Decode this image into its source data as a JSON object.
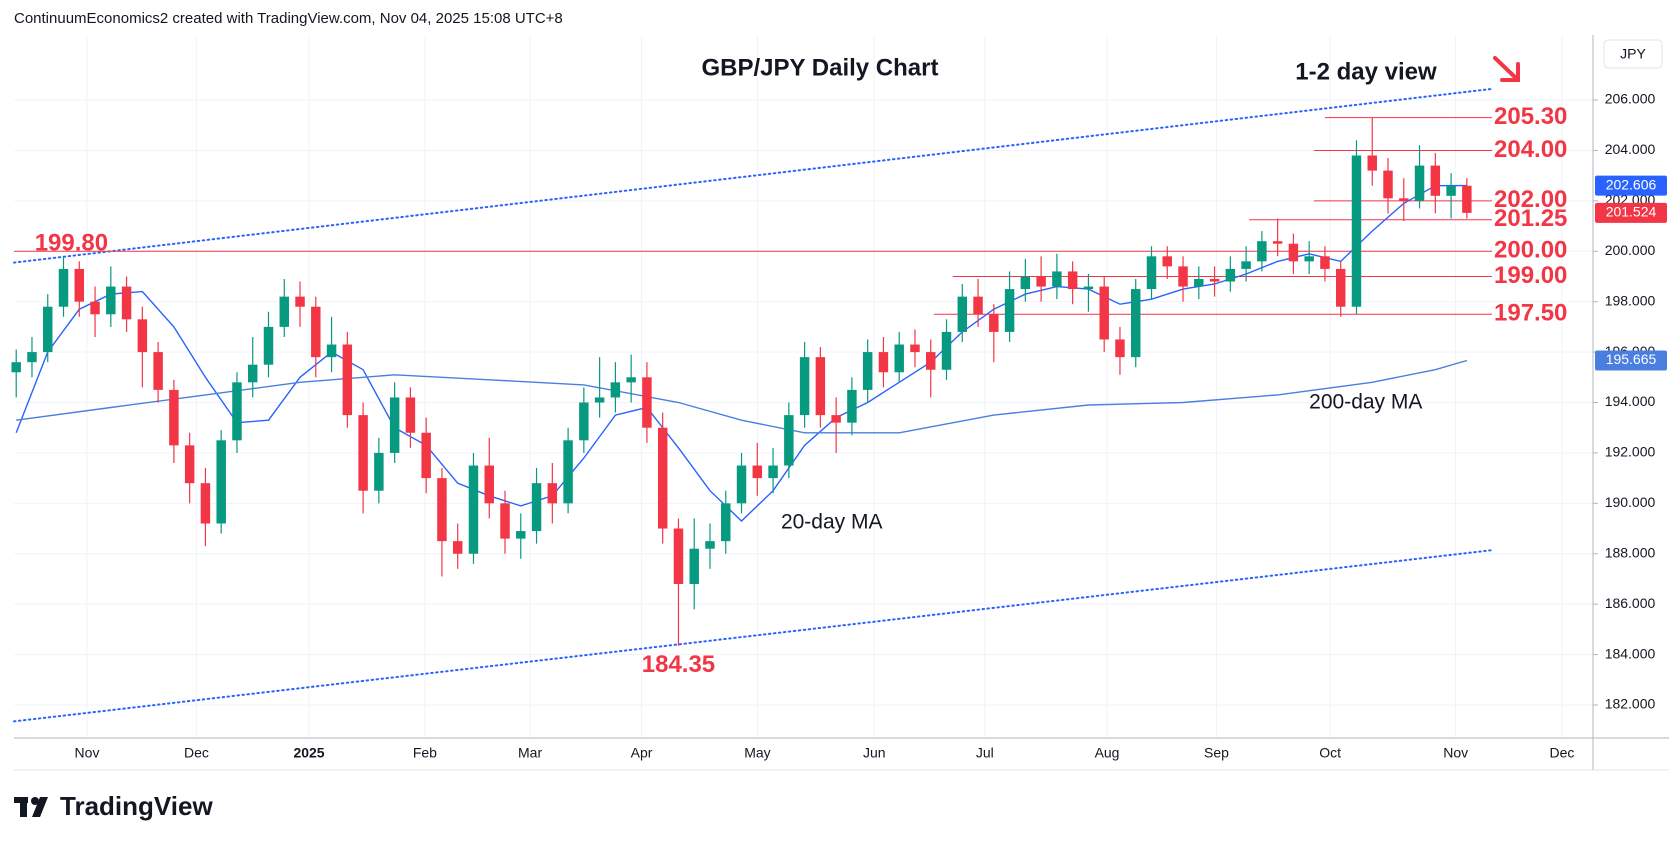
{
  "header": "ContinuumEconomics2 created with TradingView.com, Nov 04, 2025 15:08 UTC+8",
  "footer": "TradingView",
  "chart_data": {
    "type": "candlestick",
    "title": "GBP/JPY Daily Chart",
    "subtitle": "1-2 day view",
    "currency": "JPY",
    "up_color": "#089981",
    "down_color": "#f23645",
    "grid": true,
    "open": [
      195.2,
      195.6,
      196.0,
      197.8,
      199.3,
      198.0,
      197.5,
      198.6,
      197.3,
      196.0,
      194.5,
      192.3,
      190.8,
      189.2,
      192.5,
      194.8,
      195.5,
      197.0,
      198.2,
      197.8,
      195.8,
      196.3,
      193.5,
      190.5,
      192.0,
      194.2,
      192.8,
      191.0,
      188.5,
      188.0,
      191.5,
      190.0,
      188.6,
      188.9,
      190.8,
      190.0,
      192.5,
      194.0,
      194.2,
      194.8,
      195.0,
      193.0,
      189.0,
      186.8,
      188.2,
      188.5,
      190.0,
      191.5,
      191.0,
      191.5,
      193.5,
      195.8,
      193.5,
      193.2,
      194.5,
      196.0,
      195.2,
      196.3,
      196.0,
      195.3,
      196.8,
      198.2,
      197.5,
      196.8,
      198.5,
      199.0,
      198.6,
      199.2,
      198.5,
      198.6,
      196.5,
      195.8,
      198.5,
      199.8,
      199.4,
      198.6,
      198.9,
      198.8,
      199.3,
      199.6,
      200.4,
      200.3,
      199.6,
      199.8,
      199.3,
      197.8,
      203.8,
      203.2,
      202.1,
      202.0,
      203.4,
      202.2,
      202.6
    ],
    "high": [
      196.1,
      196.6,
      198.3,
      199.8,
      199.6,
      198.6,
      199.4,
      199.0,
      197.8,
      196.4,
      194.9,
      192.8,
      191.4,
      192.9,
      195.2,
      196.6,
      197.6,
      198.9,
      198.8,
      198.2,
      197.4,
      196.8,
      194.0,
      192.6,
      194.8,
      194.6,
      193.4,
      191.4,
      189.2,
      192.0,
      192.6,
      190.5,
      189.6,
      191.4,
      191.6,
      193.0,
      194.6,
      195.8,
      195.6,
      195.9,
      195.6,
      193.6,
      189.4,
      189.4,
      189.2,
      190.5,
      192.0,
      192.4,
      192.2,
      194.0,
      196.4,
      196.2,
      194.2,
      195.0,
      196.5,
      196.6,
      196.8,
      196.9,
      196.5,
      197.3,
      198.7,
      198.9,
      197.9,
      199.2,
      199.7,
      199.8,
      199.9,
      199.6,
      199.1,
      199.0,
      197.0,
      198.9,
      200.2,
      200.2,
      199.8,
      199.4,
      199.4,
      199.8,
      200.2,
      200.8,
      201.3,
      200.7,
      200.4,
      200.2,
      199.6,
      204.4,
      205.3,
      203.7,
      202.9,
      204.2,
      203.9,
      203.1,
      202.9
    ],
    "low": [
      194.2,
      195.0,
      195.6,
      197.4,
      197.4,
      196.6,
      197.0,
      196.8,
      194.6,
      194.0,
      191.6,
      190.0,
      188.3,
      188.8,
      192.0,
      194.2,
      195.0,
      196.6,
      197.0,
      195.0,
      195.2,
      193.0,
      189.6,
      190.0,
      191.6,
      192.2,
      190.4,
      187.1,
      187.4,
      187.6,
      189.4,
      188.0,
      187.8,
      188.4,
      189.2,
      189.6,
      192.0,
      193.4,
      193.6,
      194.0,
      192.4,
      188.4,
      184.35,
      185.8,
      187.4,
      188.0,
      189.6,
      190.3,
      190.4,
      191.0,
      193.0,
      193.0,
      192.0,
      192.7,
      194.0,
      194.6,
      194.8,
      195.4,
      194.2,
      194.9,
      196.4,
      197.0,
      195.6,
      196.4,
      198.0,
      198.0,
      198.1,
      197.9,
      197.6,
      196.0,
      195.1,
      195.4,
      198.1,
      198.9,
      198.0,
      198.1,
      198.2,
      198.4,
      198.8,
      199.2,
      199.8,
      199.1,
      199.1,
      198.8,
      197.4,
      197.5,
      202.6,
      201.5,
      201.2,
      201.7,
      201.5,
      201.3,
      201.3
    ],
    "close": [
      195.6,
      196.0,
      197.8,
      199.3,
      198.0,
      197.5,
      198.6,
      197.3,
      196.0,
      194.5,
      192.3,
      190.8,
      189.2,
      192.5,
      194.8,
      195.5,
      197.0,
      198.2,
      197.8,
      195.8,
      196.3,
      193.5,
      190.5,
      192.0,
      194.2,
      192.8,
      191.0,
      188.5,
      188.0,
      191.5,
      190.0,
      188.6,
      188.9,
      190.8,
      190.0,
      192.5,
      194.0,
      194.2,
      194.8,
      195.0,
      193.0,
      189.0,
      186.8,
      188.2,
      188.5,
      190.0,
      191.5,
      191.0,
      191.5,
      193.5,
      195.8,
      193.5,
      193.2,
      194.5,
      196.0,
      195.2,
      196.3,
      196.0,
      195.3,
      196.8,
      198.2,
      197.5,
      196.8,
      198.5,
      199.0,
      198.6,
      199.2,
      198.5,
      198.6,
      196.5,
      195.8,
      198.5,
      199.8,
      199.4,
      198.6,
      198.9,
      198.8,
      199.3,
      199.6,
      200.4,
      200.3,
      199.6,
      199.8,
      199.3,
      197.8,
      203.8,
      203.2,
      202.1,
      202.0,
      203.4,
      202.2,
      202.6,
      201.524
    ],
    "ma20": {
      "name": "20-day MA",
      "color": "#2962ff",
      "label_color": "#7e57c2",
      "x": [
        0,
        2,
        4,
        6,
        8,
        10,
        12,
        14,
        16,
        18,
        20,
        22,
        24,
        26,
        28,
        30,
        32,
        34,
        36,
        38,
        40,
        42,
        44,
        46,
        48,
        50,
        52,
        54,
        56,
        58,
        60,
        62,
        64,
        66,
        68,
        70,
        72,
        74,
        76,
        78,
        80,
        82,
        84,
        86,
        88,
        90,
        92
      ],
      "values": [
        192.8,
        196.0,
        197.7,
        198.3,
        198.4,
        197.0,
        195.0,
        193.2,
        193.3,
        195.0,
        196.0,
        195.3,
        193.0,
        192.3,
        190.8,
        190.3,
        189.9,
        190.3,
        191.8,
        193.5,
        193.8,
        192.2,
        190.5,
        189.3,
        190.5,
        192.3,
        193.4,
        194.0,
        194.8,
        195.6,
        196.8,
        197.7,
        198.3,
        198.6,
        198.5,
        197.9,
        198.1,
        198.5,
        198.7,
        199.1,
        199.6,
        199.9,
        199.6,
        200.8,
        201.9,
        202.6,
        202.606
      ]
    },
    "ma200": {
      "name": "200-day MA",
      "color": "#4a7fe0",
      "label_color": "#4a7fe0",
      "x": [
        0,
        6,
        12,
        18,
        24,
        30,
        36,
        42,
        46,
        50,
        56,
        62,
        68,
        74,
        80,
        86,
        90,
        92
      ],
      "values": [
        193.3,
        193.8,
        194.3,
        194.8,
        195.1,
        194.9,
        194.7,
        194.0,
        193.3,
        192.8,
        192.8,
        193.5,
        193.9,
        194.0,
        194.3,
        194.8,
        195.3,
        195.665
      ]
    },
    "channels": [
      {
        "x": [
          -0.14,
          93.7
        ],
        "y": [
          199.55,
          206.45
        ]
      },
      {
        "x": [
          -0.14,
          93.7
        ],
        "y": [
          181.35,
          188.15
        ]
      }
    ],
    "levels": [
      {
        "value": 205.3,
        "label": "205.30",
        "from": 83.0
      },
      {
        "value": 204,
        "label": "204.00",
        "from": 82.3
      },
      {
        "value": 202,
        "label": "202.00",
        "from": 82.3
      },
      {
        "value": 201.25,
        "label": "201.25",
        "from": 78.2
      },
      {
        "value": 200,
        "label": "200.00",
        "from": -0.14
      },
      {
        "value": 199,
        "label": "199.00",
        "from": 59.4
      },
      {
        "value": 197.5,
        "label": "197.50",
        "from": 58.2
      }
    ],
    "annotations": [
      {
        "value": 199.8,
        "label": "199.80"
      },
      {
        "value": 184.35,
        "label": "184.35"
      }
    ],
    "xlim": [
      -0.14,
      100.0
    ],
    "ylim": [
      180.69,
      208.58
    ],
    "yticks": [
      {
        "value": 182,
        "label": "182.000"
      },
      {
        "value": 184,
        "label": "184.000"
      },
      {
        "value": 186,
        "label": "186.000"
      },
      {
        "value": 188,
        "label": "188.000"
      },
      {
        "value": 190,
        "label": "190.000"
      },
      {
        "value": 192,
        "label": "192.000"
      },
      {
        "value": 194,
        "label": "194.000"
      },
      {
        "value": 196,
        "label": "196.000"
      },
      {
        "value": 198,
        "label": "198.000"
      },
      {
        "value": 200,
        "label": "200.000"
      },
      {
        "value": 202,
        "label": "202.000"
      },
      {
        "value": 204,
        "label": "204.000"
      },
      {
        "value": 206,
        "label": "206.000"
      }
    ],
    "xticks": [
      {
        "value": 4.49,
        "label": "Nov"
      },
      {
        "value": 11.43,
        "label": "Dec"
      },
      {
        "value": 18.57,
        "label": "2025"
      },
      {
        "value": 25.92,
        "label": "Feb"
      },
      {
        "value": 32.59,
        "label": "Mar"
      },
      {
        "value": 39.66,
        "label": "Apr"
      },
      {
        "value": 47.01,
        "label": "May"
      },
      {
        "value": 54.42,
        "label": "Jun"
      },
      {
        "value": 61.43,
        "label": "Jul"
      },
      {
        "value": 69.18,
        "label": "Aug"
      },
      {
        "value": 76.12,
        "label": "Sep"
      },
      {
        "value": 83.33,
        "label": "Oct"
      },
      {
        "value": 91.29,
        "label": "Nov"
      },
      {
        "value": 98.03,
        "label": "Dec"
      }
    ]
  }
}
